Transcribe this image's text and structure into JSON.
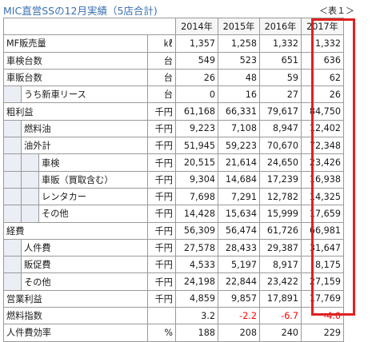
{
  "title": "MIC直営SSの12月実績（5店合計)",
  "table_tag": "＜表１＞",
  "years": [
    "2014年",
    "2015年",
    "2016年",
    "2017年"
  ],
  "highlight_color": "#e02020",
  "negative_color": "#ff0000",
  "rows": [
    {
      "level": 0,
      "label": "MF販売量",
      "unit": "㎘",
      "values": [
        "1,357",
        "1,258",
        "1,332",
        "1,332"
      ]
    },
    {
      "level": 0,
      "label": "車検台数",
      "unit": "台",
      "values": [
        "549",
        "523",
        "651",
        "636"
      ]
    },
    {
      "level": 0,
      "label": "車販台数",
      "unit": "台",
      "values": [
        "26",
        "48",
        "59",
        "62"
      ]
    },
    {
      "level": 1,
      "label": "うち新車リース",
      "unit": "台",
      "values": [
        "0",
        "16",
        "27",
        "26"
      ]
    },
    {
      "level": 0,
      "label": "粗利益",
      "unit": "千円",
      "values": [
        "61,168",
        "66,331",
        "79,617",
        "84,750"
      ]
    },
    {
      "level": 1,
      "label": "燃料油",
      "unit": "千円",
      "values": [
        "9,223",
        "7,108",
        "8,947",
        "12,402"
      ]
    },
    {
      "level": 1,
      "label": "油外計",
      "unit": "千円",
      "values": [
        "51,945",
        "59,223",
        "70,670",
        "72,348"
      ]
    },
    {
      "level": 2,
      "label": "車検",
      "unit": "千円",
      "values": [
        "20,515",
        "21,614",
        "24,650",
        "23,426"
      ]
    },
    {
      "level": 2,
      "label": "車販（買取含む）",
      "unit": "千円",
      "values": [
        "9,304",
        "14,684",
        "17,239",
        "16,938"
      ]
    },
    {
      "level": 2,
      "label": "レンタカー",
      "unit": "千円",
      "values": [
        "7,698",
        "7,291",
        "12,782",
        "14,325"
      ]
    },
    {
      "level": 2,
      "label": "その他",
      "unit": "千円",
      "values": [
        "14,428",
        "15,634",
        "15,999",
        "17,659"
      ]
    },
    {
      "level": 0,
      "label": "経費",
      "unit": "千円",
      "values": [
        "56,309",
        "56,474",
        "61,726",
        "66,981"
      ]
    },
    {
      "level": 1,
      "label": "人件費",
      "unit": "千円",
      "values": [
        "27,578",
        "28,433",
        "29,387",
        "31,647"
      ]
    },
    {
      "level": 1,
      "label": "販促費",
      "unit": "千円",
      "values": [
        "4,533",
        "5,197",
        "8,917",
        "8,175"
      ]
    },
    {
      "level": 1,
      "label": "その他",
      "unit": "千円",
      "values": [
        "24,198",
        "22,844",
        "23,422",
        "27,159"
      ]
    },
    {
      "level": 0,
      "label": "営業利益",
      "unit": "千円",
      "values": [
        "4,859",
        "9,857",
        "17,891",
        "17,769"
      ]
    },
    {
      "level": 0,
      "label": "燃料指数",
      "unit": "",
      "values": [
        "3.2",
        "-2.2",
        "-6.7",
        "-4.0"
      ]
    },
    {
      "level": 0,
      "label": "人件費効率",
      "unit": "%",
      "values": [
        "188",
        "208",
        "240",
        "229"
      ]
    }
  ]
}
